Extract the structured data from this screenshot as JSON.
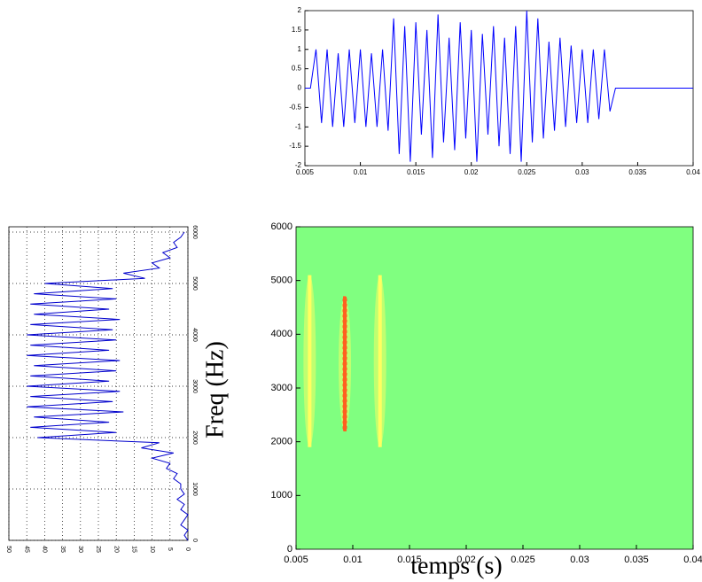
{
  "chart_data": [
    {
      "type": "line",
      "color": "#0000ff",
      "grid": false,
      "x": [
        0.005,
        0.0055,
        0.006,
        0.0065,
        0.007,
        0.0075,
        0.008,
        0.0085,
        0.009,
        0.0095,
        0.01,
        0.0105,
        0.011,
        0.0115,
        0.012,
        0.0125,
        0.013,
        0.0135,
        0.014,
        0.0145,
        0.015,
        0.0155,
        0.016,
        0.0165,
        0.017,
        0.0175,
        0.018,
        0.0185,
        0.019,
        0.0195,
        0.02,
        0.0205,
        0.021,
        0.0215,
        0.022,
        0.0225,
        0.023,
        0.0235,
        0.024,
        0.0245,
        0.025,
        0.0255,
        0.026,
        0.0265,
        0.027,
        0.0275,
        0.028,
        0.0285,
        0.029,
        0.0295,
        0.03,
        0.0305,
        0.031,
        0.0315,
        0.032,
        0.0325,
        0.033,
        0.0335,
        0.034,
        0.0345,
        0.035,
        0.0355,
        0.036,
        0.0365,
        0.037,
        0.0375,
        0.038,
        0.0385,
        0.039,
        0.0395,
        0.04
      ],
      "values": [
        0,
        0,
        1,
        -0.9,
        1,
        -1,
        0.9,
        -1,
        1,
        -0.9,
        1,
        -1,
        0.9,
        -1,
        1,
        -1.1,
        1.8,
        -1.7,
        1.6,
        -1.9,
        1.7,
        -1.2,
        1.5,
        -1.8,
        1.9,
        -1.4,
        1.3,
        -1.6,
        1.7,
        -1.3,
        1.5,
        -1.9,
        1.4,
        -1.2,
        1.6,
        -1.5,
        1.3,
        -1.7,
        1.6,
        -1.9,
        2,
        -1.4,
        1.8,
        -1.3,
        1.2,
        -1.1,
        1.3,
        -1,
        1.1,
        -0.9,
        1,
        -0.9,
        1,
        -0.8,
        1,
        -0.6,
        0,
        0,
        0,
        0,
        0,
        0,
        0,
        0,
        0,
        0,
        0,
        0,
        0,
        0,
        0
      ],
      "xlim": [
        0.005,
        0.04
      ],
      "xticks": [
        0.005,
        0.01,
        0.015,
        0.02,
        0.025,
        0.03,
        0.035,
        0.04
      ],
      "ylim": [
        -2,
        2
      ],
      "yticks": [
        -2,
        -1.5,
        -1,
        -0.5,
        0,
        0.5,
        1,
        1.5,
        2
      ]
    },
    {
      "type": "spectrum",
      "color": "#0000cc",
      "grid": true,
      "x": [
        0,
        100,
        200,
        300,
        400,
        500,
        600,
        700,
        800,
        900,
        1000,
        1100,
        1200,
        1300,
        1400,
        1500,
        1600,
        1700,
        1800,
        1900,
        2000,
        2100,
        2200,
        2300,
        2400,
        2500,
        2600,
        2700,
        2800,
        2900,
        3000,
        3100,
        3200,
        3300,
        3400,
        3500,
        3600,
        3700,
        3800,
        3900,
        4000,
        4100,
        4200,
        4300,
        4400,
        4500,
        4600,
        4700,
        4800,
        4900,
        5000,
        5100,
        5200,
        5300,
        5400,
        5500,
        5600,
        5700,
        5800,
        5900,
        6000
      ],
      "values": [
        0,
        1,
        0,
        2,
        1,
        0,
        2,
        1,
        3,
        1,
        2,
        2,
        4,
        3,
        6,
        5,
        10,
        4,
        13,
        8,
        42,
        20,
        44,
        22,
        43,
        18,
        45,
        21,
        44,
        19,
        45,
        22,
        44,
        20,
        43,
        19,
        45,
        22,
        44,
        20,
        45,
        21,
        44,
        19,
        43,
        22,
        44,
        20,
        43,
        21,
        40,
        12,
        18,
        8,
        10,
        5,
        7,
        3,
        4,
        2,
        1
      ],
      "xlim": [
        0,
        6000
      ],
      "xticks": [
        0,
        1000,
        2000,
        3000,
        4000,
        5000,
        6000
      ],
      "ylim": [
        0,
        50
      ],
      "yticks": [
        0,
        5,
        10,
        15,
        20,
        25,
        30,
        35,
        40,
        45,
        50
      ]
    },
    {
      "type": "tfr",
      "background_color": "#80ff80",
      "xlabel": "temps (s)",
      "ylabel": "Freq (Hz)",
      "components": {
        "x": [
          0.0062,
          0.0093,
          0.0124
        ],
        "fmin": [
          1900,
          2200,
          1900
        ],
        "fmax": [
          5100,
          4700,
          5100
        ],
        "color": [
          "#ffff60",
          "#ff6020",
          "#ffff60"
        ]
      },
      "xlim": [
        0.005,
        0.04
      ],
      "xticks": [
        0.005,
        0.01,
        0.015,
        0.02,
        0.025,
        0.03,
        0.035,
        0.04
      ],
      "ylim": [
        0,
        6000
      ],
      "yticks": [
        0,
        1000,
        2000,
        3000,
        4000,
        5000,
        6000
      ]
    }
  ]
}
